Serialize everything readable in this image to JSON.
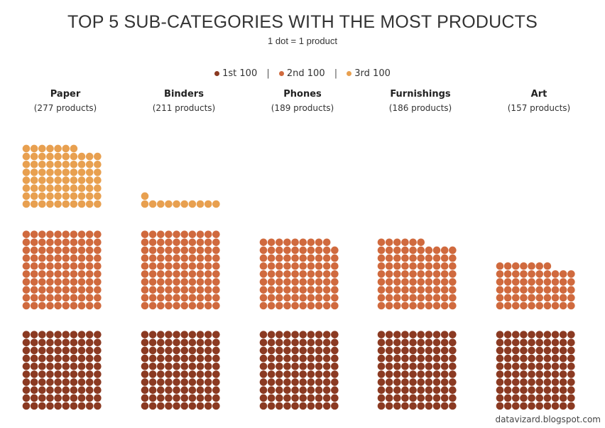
{
  "chart_data": {
    "type": "dot-matrix",
    "title": "TOP 5 SUB-CATEGORIES WITH THE MOST PRODUCTS",
    "subtitle": "1 dot = 1 product",
    "legend": [
      {
        "label": "1st 100",
        "color": "#8b3a22"
      },
      {
        "label": "2nd 100",
        "color": "#d06a3e"
      },
      {
        "label": "3rd 100",
        "color": "#e8a050"
      }
    ],
    "categories": [
      {
        "name": "Paper",
        "count_label": "(277 products)",
        "value": 277
      },
      {
        "name": "Binders",
        "count_label": "(211 products)",
        "value": 211
      },
      {
        "name": "Phones",
        "count_label": "(189 products)",
        "value": 189
      },
      {
        "name": "Furnishings",
        "count_label": "(186 products)",
        "value": 186
      },
      {
        "name": "Art",
        "count_label": "(157 products)",
        "value": 157
      }
    ],
    "dots_per_row": 10,
    "dots_per_block": 100
  },
  "credit": "datavizard.blogspot.com"
}
